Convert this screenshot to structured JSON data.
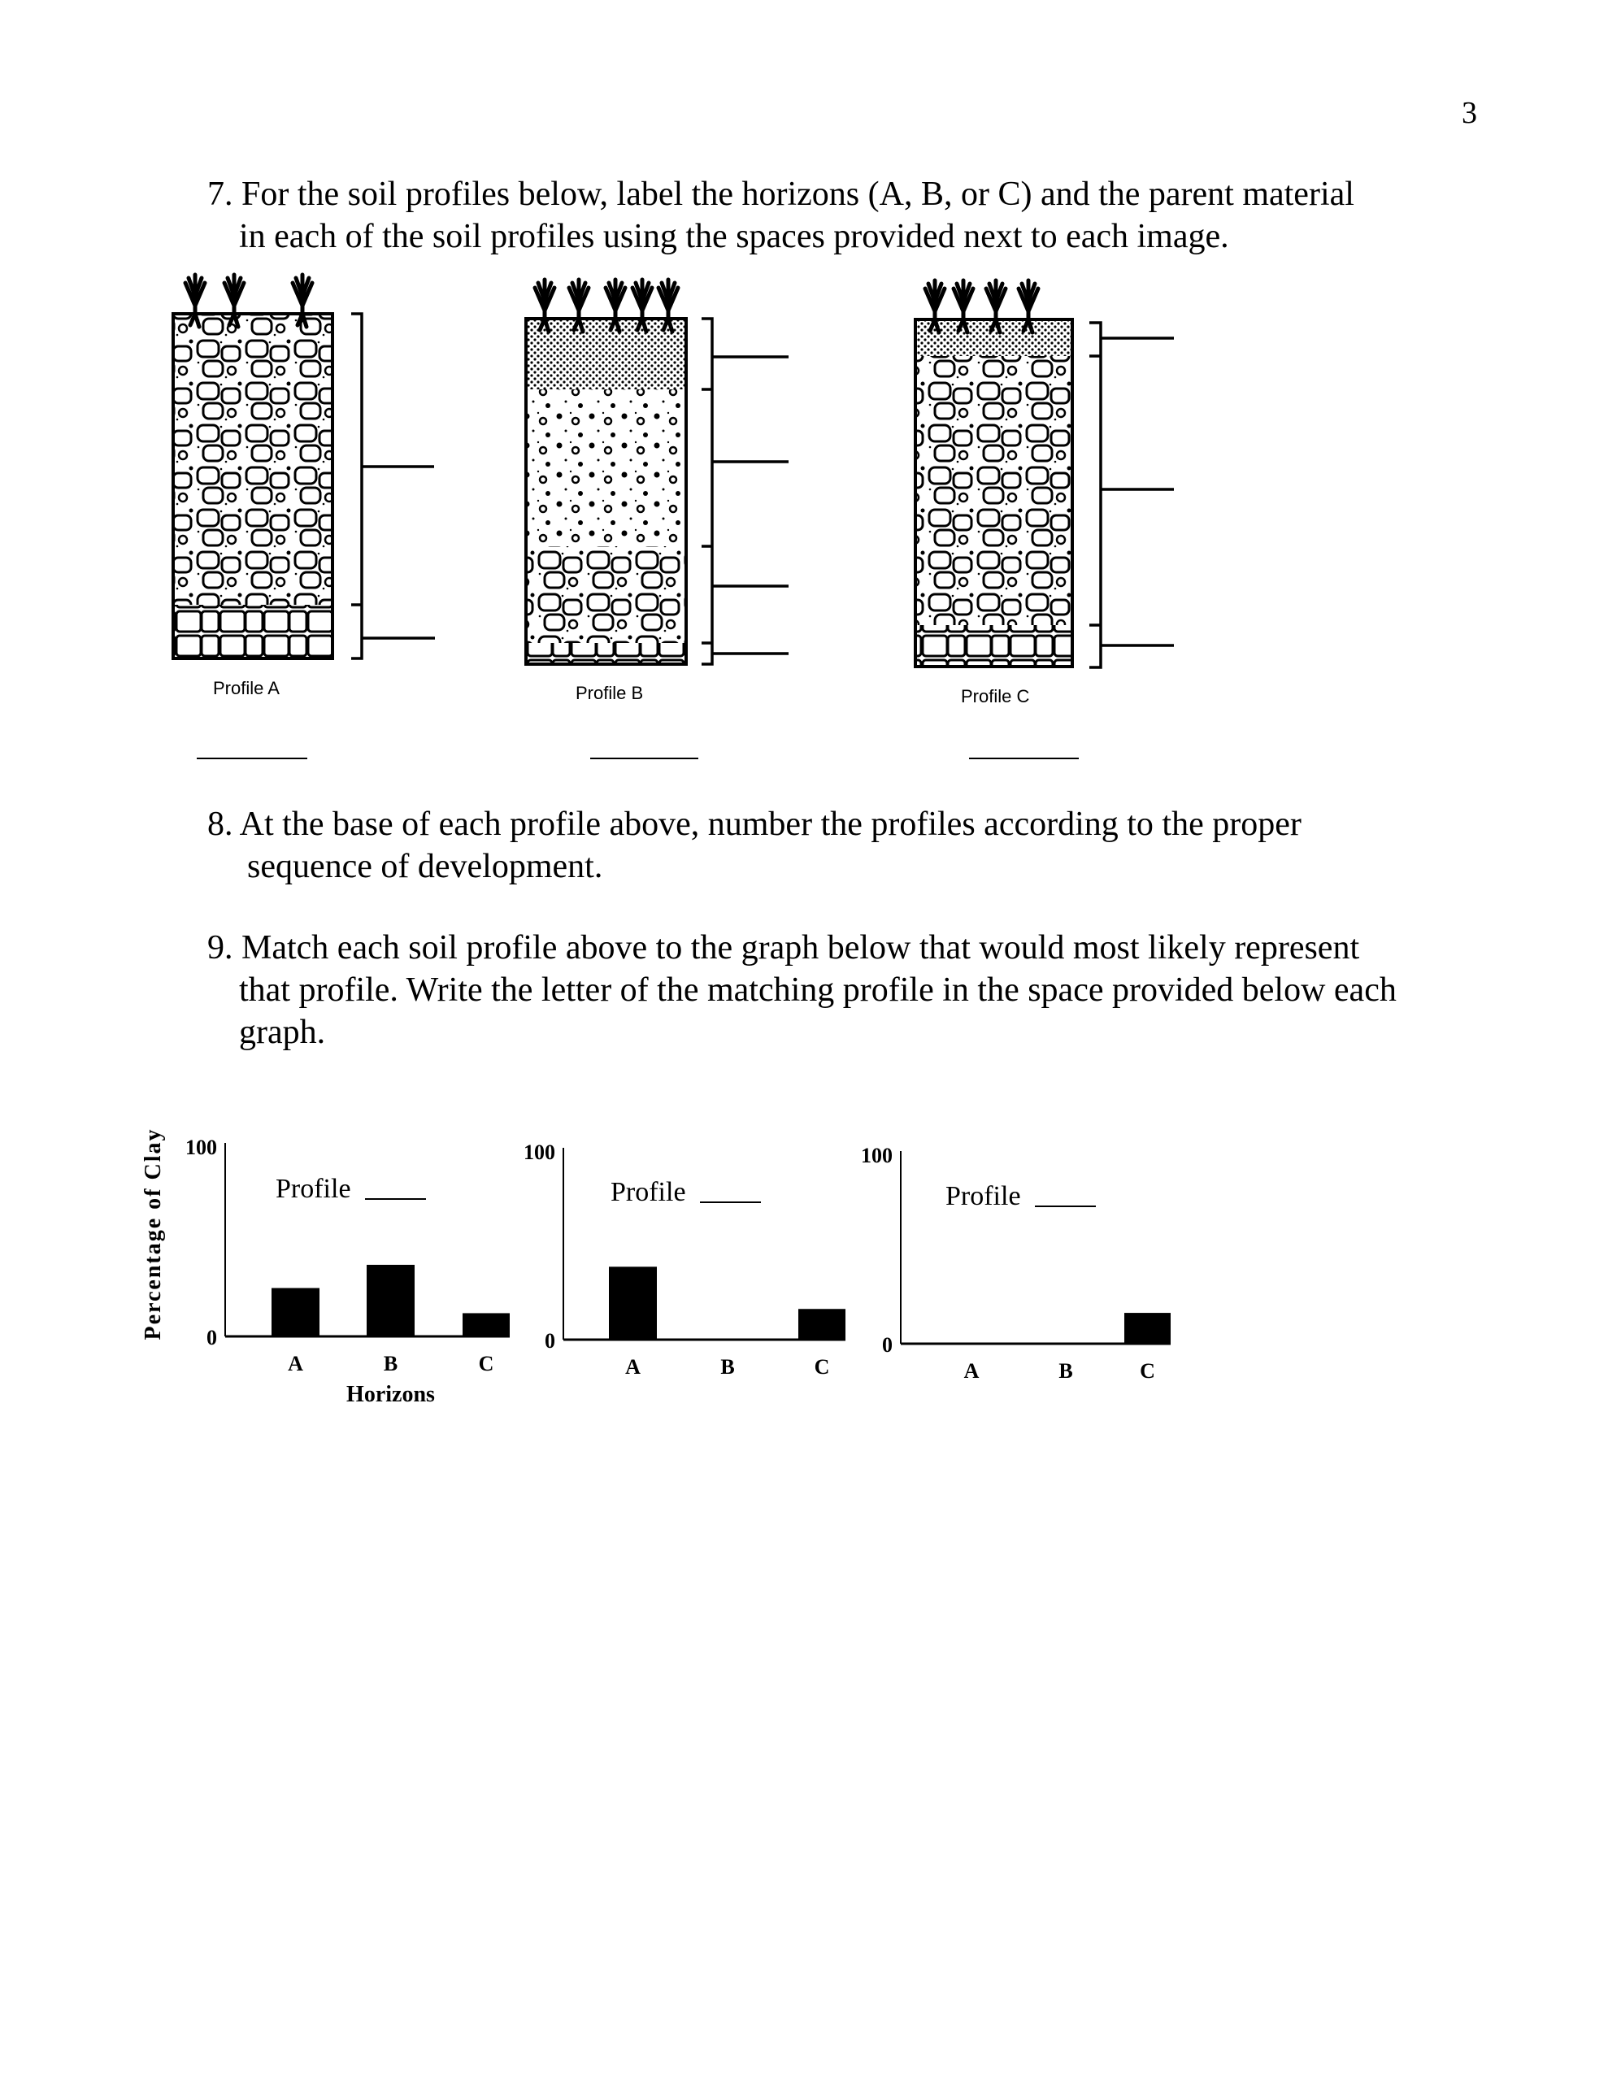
{
  "page_number": "3",
  "q7": {
    "line1": "7. For the soil profiles below, label the horizons (A, B, or C) and the parent material",
    "line2": "in each of the soil profiles using the spaces provided next to each image."
  },
  "profiles": [
    {
      "label": "Profile A"
    },
    {
      "label": "Profile B"
    },
    {
      "label": "Profile C"
    }
  ],
  "q8": {
    "line1": "8. At the base of each profile above, number the profiles according to the proper",
    "line2": "sequence of development."
  },
  "q9": {
    "line1": "9. Match each soil profile above to the graph below that would most likely represent",
    "line2": "that profile. Write the letter of the matching profile in the space provided below each",
    "line3": "graph."
  },
  "chart_data": [
    {
      "type": "bar",
      "title": "Profile ____",
      "categories": [
        "A",
        "B",
        "C"
      ],
      "values": [
        25,
        37,
        12
      ],
      "ylabel": "Percentage of Clay",
      "xlabel": "Horizons",
      "ylim": [
        0,
        100
      ],
      "yticks": [
        "0",
        "100"
      ],
      "color": "#000000"
    },
    {
      "type": "bar",
      "title": "Profile ____",
      "categories": [
        "A",
        "B",
        "C"
      ],
      "values": [
        38,
        0,
        16
      ],
      "ylim": [
        0,
        100
      ],
      "yticks": [
        "0",
        "100"
      ],
      "color": "#000000"
    },
    {
      "type": "bar",
      "title": "Profile ____",
      "categories": [
        "A",
        "B",
        "C"
      ],
      "values": [
        0,
        0,
        16
      ],
      "ylim": [
        0,
        100
      ],
      "yticks": [
        "0",
        "100"
      ],
      "color": "#000000"
    }
  ]
}
